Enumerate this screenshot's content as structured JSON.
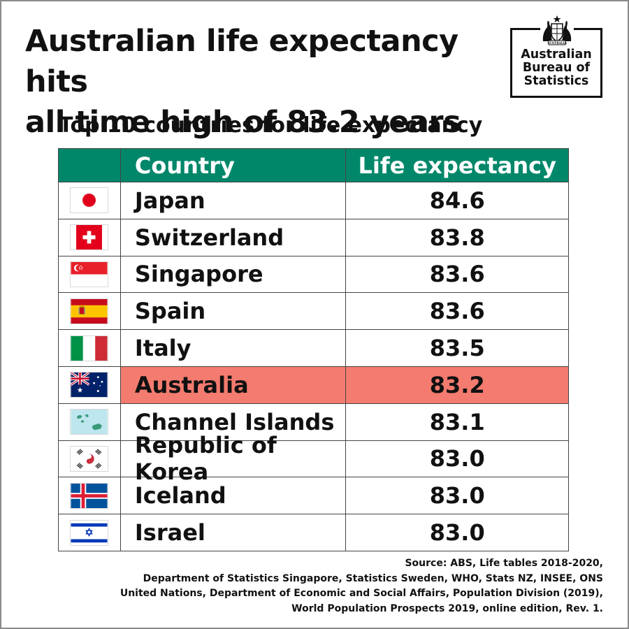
{
  "title": {
    "line1": "Australian life expectancy hits",
    "line2": "all time high of 83.2 years"
  },
  "logo": {
    "line1": "Australian",
    "line2": "Bureau of",
    "line3": "Statistics",
    "crest_band": "AUSTRALIA",
    "icon": "coat-of-arms"
  },
  "colors": {
    "header": "#00876a",
    "highlight": "#f47b6f",
    "text": "#111111"
  },
  "chart_data": {
    "type": "table",
    "title": "Top 10 countries for life expectancy",
    "columns": [
      "Country",
      "Life expectancy"
    ],
    "rows": [
      {
        "flag": "japan-flag",
        "country": "Japan",
        "value": "84.6",
        "highlight": false
      },
      {
        "flag": "switzerland-flag",
        "country": "Switzerland",
        "value": "83.8",
        "highlight": false
      },
      {
        "flag": "singapore-flag",
        "country": "Singapore",
        "value": "83.6",
        "highlight": false
      },
      {
        "flag": "spain-flag",
        "country": "Spain",
        "value": "83.6",
        "highlight": false
      },
      {
        "flag": "italy-flag",
        "country": "Italy",
        "value": "83.5",
        "highlight": false
      },
      {
        "flag": "australia-flag",
        "country": "Australia",
        "value": "83.2",
        "highlight": true
      },
      {
        "flag": "channel-islands-map",
        "country": "Channel Islands",
        "value": "83.1",
        "highlight": false
      },
      {
        "flag": "korea-flag",
        "country": "Republic of Korea",
        "value": "83.0",
        "highlight": false
      },
      {
        "flag": "iceland-flag",
        "country": "Iceland",
        "value": "83.0",
        "highlight": false
      },
      {
        "flag": "israel-flag",
        "country": "Israel",
        "value": "83.0",
        "highlight": false
      }
    ]
  },
  "source": {
    "line1": "Source: ABS, Life tables 2018-2020,",
    "line2": "Department of Statistics Singapore, Statistics Sweden, WHO, Stats NZ, INSEE, ONS",
    "line3": "United Nations, Department of Economic and Social Affairs, Population Division (2019),",
    "line4": "World Population Prospects 2019, online edition, Rev. 1."
  }
}
